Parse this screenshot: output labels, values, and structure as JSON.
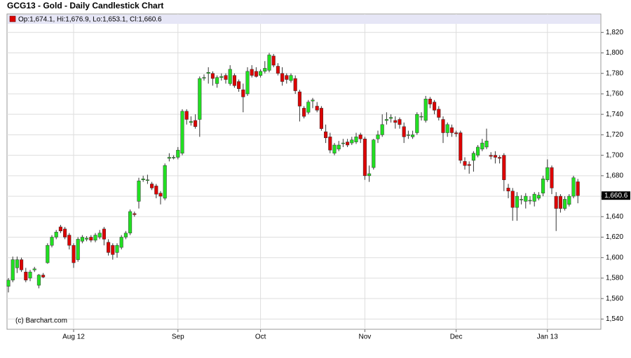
{
  "chart_data": {
    "type": "candlestick",
    "title": "GCG13 - Gold - Daily Candlestick Chart",
    "legend_text": "Op:1,674.1, Hi:1,676.9, Lo:1,653.1, Cl:1,660.6",
    "copyright": "(c) Barchart.com",
    "last_price_label": {
      "value": 1660.6,
      "label": "1,660.6"
    },
    "up_color": "#22e022",
    "down_color": "#dd0000",
    "grid": true,
    "categories": [
      null,
      null,
      null,
      null,
      null,
      null,
      null,
      null,
      null,
      null,
      null,
      null,
      null,
      null,
      null,
      "Aug 12",
      null,
      null,
      null,
      null,
      null,
      null,
      null,
      null,
      null,
      null,
      null,
      null,
      null,
      null,
      null,
      null,
      null,
      null,
      null,
      null,
      null,
      null,
      null,
      "Sep",
      null,
      null,
      null,
      null,
      null,
      null,
      null,
      null,
      null,
      null,
      null,
      null,
      null,
      null,
      null,
      null,
      null,
      null,
      "Oct",
      null,
      null,
      null,
      null,
      null,
      null,
      null,
      null,
      null,
      null,
      null,
      null,
      null,
      null,
      null,
      null,
      null,
      null,
      null,
      null,
      null,
      null,
      null,
      "Nov",
      null,
      null,
      null,
      null,
      null,
      null,
      null,
      null,
      null,
      null,
      null,
      null,
      null,
      null,
      null,
      null,
      null,
      null,
      null,
      null,
      "Dec",
      null,
      null,
      null,
      null,
      null,
      null,
      null,
      null,
      null,
      null,
      null,
      null,
      null,
      null,
      null,
      null,
      null,
      null,
      null,
      null,
      "Jan 13",
      null,
      null,
      null,
      null,
      null,
      null,
      null
    ],
    "open": [
      1572,
      1578,
      1590,
      1598,
      1586,
      1580,
      1588,
      1573,
      1583,
      1595,
      1612,
      1620,
      1630,
      1628,
      1622,
      1612,
      1598,
      1616,
      1618,
      1620,
      1617,
      1620,
      1628,
      1615,
      1612,
      1605,
      1610,
      1620,
      1624,
      1643,
      1655,
      1676,
      1676,
      1672,
      1670,
      1663,
      1658,
      1697,
      1698,
      1698,
      1702,
      1743,
      1732,
      1734,
      1735,
      1776,
      1780,
      1780,
      1770,
      1776,
      1778,
      1770,
      1778,
      1772,
      1764,
      1760,
      1784,
      1782,
      1778,
      1782,
      1783,
      1797,
      1787,
      1780,
      1778,
      1773,
      1775,
      1762,
      1746,
      1742,
      1753,
      1748,
      1746,
      1723,
      1718,
      1702,
      1706,
      1712,
      1713,
      1712,
      1713,
      1720,
      1716,
      1680,
      1688,
      1716,
      1720,
      1734,
      1736,
      1734,
      1735,
      1728,
      1720,
      1718,
      1722,
      1738,
      1734,
      1755,
      1752,
      1745,
      1735,
      1722,
      1727,
      1722,
      1722,
      1694,
      1691,
      1695,
      1700,
      1706,
      1708,
      1700,
      1700,
      1698,
      1700,
      1668,
      1665,
      1649,
      1657,
      1655,
      1656,
      1655,
      1658,
      1663,
      1676,
      1688,
      1660,
      1660,
      1648,
      1652,
      1660,
      1674.1
    ],
    "high": [
      1580,
      1601,
      1601,
      1600,
      1590,
      1588,
      1591,
      1584,
      1585,
      1614,
      1622,
      1627,
      1632,
      1630,
      1624,
      1614,
      1620,
      1622,
      1621,
      1622,
      1624,
      1627,
      1630,
      1618,
      1614,
      1614,
      1622,
      1626,
      1647,
      1645,
      1678,
      1680,
      1681,
      1674,
      1672,
      1665,
      1692,
      1702,
      1700,
      1708,
      1745,
      1745,
      1738,
      1740,
      1777,
      1779,
      1786,
      1782,
      1778,
      1780,
      1780,
      1788,
      1780,
      1774,
      1770,
      1786,
      1788,
      1786,
      1784,
      1792,
      1800,
      1799,
      1790,
      1786,
      1780,
      1780,
      1778,
      1764,
      1748,
      1754,
      1756,
      1752,
      1748,
      1730,
      1722,
      1712,
      1714,
      1716,
      1716,
      1718,
      1722,
      1722,
      1718,
      1690,
      1716,
      1724,
      1740,
      1742,
      1740,
      1738,
      1737,
      1732,
      1724,
      1724,
      1742,
      1742,
      1758,
      1757,
      1754,
      1748,
      1738,
      1732,
      1730,
      1724,
      1724,
      1698,
      1694,
      1704,
      1710,
      1716,
      1726,
      1703,
      1704,
      1700,
      1702,
      1672,
      1668,
      1664,
      1661,
      1663,
      1660,
      1664,
      1664,
      1680,
      1696,
      1690,
      1664,
      1662,
      1660,
      1662,
      1680,
      1676.9
    ],
    "low": [
      1566,
      1576,
      1585,
      1586,
      1576,
      1577,
      1586,
      1570,
      1580,
      1594,
      1610,
      1618,
      1624,
      1618,
      1608,
      1590,
      1596,
      1614,
      1616,
      1615,
      1615,
      1618,
      1612,
      1602,
      1598,
      1600,
      1608,
      1618,
      1622,
      1640,
      1648,
      1674,
      1672,
      1666,
      1658,
      1652,
      1656,
      1694,
      1696,
      1696,
      1700,
      1730,
      1729,
      1726,
      1718,
      1773,
      1770,
      1768,
      1766,
      1773,
      1770,
      1768,
      1766,
      1762,
      1742,
      1758,
      1776,
      1776,
      1776,
      1780,
      1781,
      1786,
      1778,
      1768,
      1770,
      1771,
      1760,
      1733,
      1736,
      1740,
      1746,
      1742,
      1724,
      1712,
      1702,
      1700,
      1704,
      1708,
      1708,
      1710,
      1711,
      1712,
      1676,
      1674,
      1686,
      1712,
      1718,
      1730,
      1732,
      1726,
      1726,
      1712,
      1716,
      1716,
      1720,
      1734,
      1732,
      1746,
      1740,
      1734,
      1712,
      1718,
      1718,
      1718,
      1692,
      1686,
      1682,
      1684,
      1698,
      1704,
      1706,
      1696,
      1692,
      1692,
      1665,
      1658,
      1636,
      1636,
      1652,
      1648,
      1652,
      1650,
      1656,
      1660,
      1674,
      1662,
      1626,
      1644,
      1646,
      1650,
      1658,
      1653.1
    ],
    "close": [
      1578,
      1598,
      1598,
      1588,
      1578,
      1586,
      1589,
      1583,
      1581,
      1612,
      1620,
      1625,
      1626,
      1620,
      1612,
      1595,
      1618,
      1620,
      1619,
      1617,
      1622,
      1624,
      1618,
      1605,
      1603,
      1612,
      1620,
      1624,
      1645,
      1642,
      1675,
      1677,
      1676,
      1668,
      1662,
      1660,
      1690,
      1698,
      1698,
      1705,
      1743,
      1735,
      1733,
      1728,
      1775,
      1776,
      1781,
      1775,
      1776,
      1777,
      1774,
      1784,
      1768,
      1765,
      1757,
      1782,
      1778,
      1777,
      1782,
      1785,
      1798,
      1788,
      1780,
      1772,
      1774,
      1778,
      1763,
      1748,
      1738,
      1752,
      1754,
      1744,
      1726,
      1717,
      1705,
      1710,
      1710,
      1712,
      1710,
      1715,
      1718,
      1716,
      1680,
      1682,
      1715,
      1720,
      1730,
      1735,
      1737,
      1732,
      1730,
      1718,
      1720,
      1720,
      1740,
      1738,
      1755,
      1750,
      1744,
      1737,
      1722,
      1730,
      1722,
      1721,
      1695,
      1690,
      1690,
      1702,
      1708,
      1712,
      1714,
      1699,
      1698,
      1697,
      1676,
      1665,
      1649,
      1660,
      1657,
      1660,
      1656,
      1662,
      1661,
      1677,
      1688,
      1668,
      1648,
      1648,
      1657,
      1660,
      1678,
      1660.6
    ],
    "ylim": [
      1530,
      1838
    ],
    "yticks": [
      {
        "value": 1540,
        "label": "1,540"
      },
      {
        "value": 1560,
        "label": "1,560"
      },
      {
        "value": 1580,
        "label": "1,580"
      },
      {
        "value": 1600,
        "label": "1,600"
      },
      {
        "value": 1620,
        "label": "1,620"
      },
      {
        "value": 1640,
        "label": "1,640"
      },
      {
        "value": 1660,
        "label": "1,660"
      },
      {
        "value": 1680,
        "label": "1,680"
      },
      {
        "value": 1700,
        "label": "1,700"
      },
      {
        "value": 1720,
        "label": "1,720"
      },
      {
        "value": 1740,
        "label": "1,740"
      },
      {
        "value": 1760,
        "label": "1,760"
      },
      {
        "value": 1780,
        "label": "1,780"
      },
      {
        "value": 1800,
        "label": "1,800"
      },
      {
        "value": 1820,
        "label": "1,820"
      }
    ]
  }
}
